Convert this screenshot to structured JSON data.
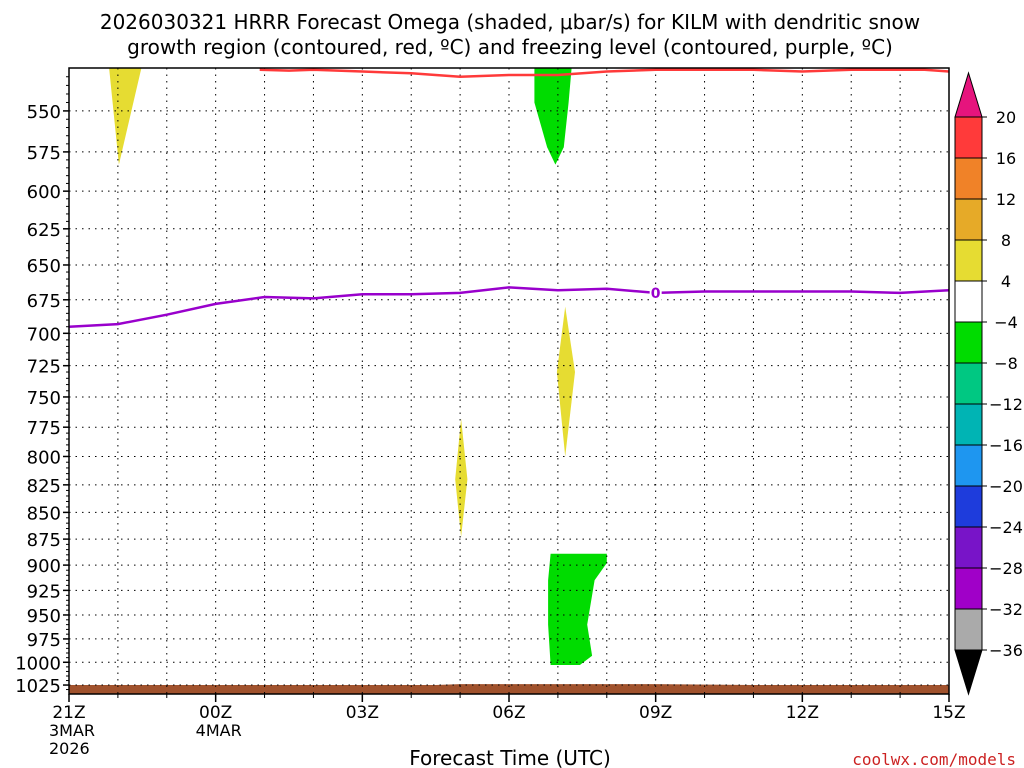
{
  "chart_data": {
    "type": "heatmap",
    "title_line1": "2026030321 HRRR Forecast Omega (shaded, μbar/s) for KILM with dendritic snow",
    "title_line2": "growth region (contoured, red, ºC) and freezing level (contoured, purple, ºC)",
    "xlabel": "Forecast Time (UTC)",
    "credit": "coolwx.com/models",
    "x_hours_range": [
      0,
      18
    ],
    "y_pressure_range": [
      525,
      1035
    ],
    "y_ticks": [
      550,
      575,
      600,
      625,
      650,
      675,
      700,
      725,
      750,
      775,
      800,
      825,
      850,
      875,
      900,
      925,
      950,
      975,
      1000,
      1025
    ],
    "x_ticks": [
      {
        "hour": 0,
        "label": "21Z",
        "sub1": "3MAR",
        "sub2": "2026"
      },
      {
        "hour": 3,
        "label": "00Z",
        "sub1": "4MAR",
        "sub2": ""
      },
      {
        "hour": 6,
        "label": "03Z",
        "sub1": "",
        "sub2": ""
      },
      {
        "hour": 9,
        "label": "06Z",
        "sub1": "",
        "sub2": ""
      },
      {
        "hour": 12,
        "label": "09Z",
        "sub1": "",
        "sub2": ""
      },
      {
        "hour": 15,
        "label": "12Z",
        "sub1": "",
        "sub2": ""
      },
      {
        "hour": 18,
        "label": "15Z",
        "sub1": "",
        "sub2": ""
      }
    ],
    "colorbar": {
      "levels": [
        20,
        16,
        12,
        8,
        4,
        -4,
        -8,
        -12,
        -16,
        -20,
        -24,
        -28,
        -32,
        -36
      ],
      "colors": [
        "#ff3a3a",
        "#f08228",
        "#e6aa28",
        "#e6dc32",
        "#ffffff",
        "#00dc00",
        "#00c882",
        "#00b4b4",
        "#1e96f0",
        "#1e3cdc",
        "#7814c8",
        "#a000c8",
        "#aaaaaa"
      ],
      "top_arrow_color": "#e6147d",
      "bottom_arrow_color": "#000000"
    },
    "omega_regions": [
      {
        "name": "yellow-upper-left",
        "color": "#e6dc32",
        "points": [
          [
            0.82,
            525
          ],
          [
            1.48,
            525
          ],
          [
            1.02,
            583
          ]
        ]
      },
      {
        "name": "green-upper-mid",
        "color": "#00dc00",
        "points": [
          [
            9.52,
            525
          ],
          [
            10.28,
            525
          ],
          [
            10.22,
            545
          ],
          [
            10.12,
            572
          ],
          [
            9.95,
            583
          ],
          [
            9.78,
            572
          ],
          [
            9.52,
            545
          ]
        ]
      },
      {
        "name": "yellow-mid-vertical",
        "color": "#e6dc32",
        "points": [
          [
            10.15,
            680
          ],
          [
            10.35,
            730
          ],
          [
            10.15,
            800
          ],
          [
            9.98,
            730
          ]
        ]
      },
      {
        "name": "yellow-lower-vertical",
        "color": "#e6dc32",
        "points": [
          [
            8.02,
            768
          ],
          [
            8.15,
            820
          ],
          [
            8.02,
            873
          ],
          [
            7.9,
            820
          ]
        ]
      },
      {
        "name": "green-lower-mid",
        "color": "#00dc00",
        "points": [
          [
            9.85,
            889
          ],
          [
            11.0,
            889
          ],
          [
            11.0,
            898
          ],
          [
            10.75,
            915
          ],
          [
            10.6,
            960
          ],
          [
            10.7,
            993
          ],
          [
            10.45,
            1003
          ],
          [
            9.85,
            1003
          ],
          [
            9.8,
            960
          ],
          [
            9.8,
            915
          ]
        ]
      },
      {
        "name": "surface-band",
        "color": "#a0522d",
        "points": [
          [
            0,
            1025
          ],
          [
            7.5,
            1025
          ],
          [
            8.0,
            1024
          ],
          [
            12.0,
            1024
          ],
          [
            14.0,
            1025
          ],
          [
            18,
            1025
          ],
          [
            18,
            1035
          ],
          [
            0,
            1035
          ]
        ]
      }
    ],
    "dendritic_contour": {
      "color": "#ff3a3a",
      "points": [
        [
          3.9,
          526
        ],
        [
          4.5,
          526.5
        ],
        [
          5.0,
          526
        ],
        [
          6.0,
          527
        ],
        [
          7.0,
          528
        ],
        [
          8.0,
          530
        ],
        [
          9.0,
          529
        ],
        [
          10.0,
          529
        ],
        [
          10.5,
          528
        ],
        [
          11.0,
          527
        ],
        [
          12.0,
          526
        ],
        [
          13.0,
          526
        ],
        [
          14.0,
          526
        ],
        [
          15.0,
          527
        ],
        [
          16.0,
          526
        ],
        [
          17.0,
          526
        ],
        [
          17.5,
          526
        ],
        [
          18,
          527
        ]
      ]
    },
    "freezing_contour": {
      "color": "#9900cc",
      "label": "0",
      "label_hour": 12,
      "points": [
        [
          0,
          695
        ],
        [
          1.0,
          693
        ],
        [
          2.0,
          686
        ],
        [
          3.0,
          678
        ],
        [
          4.0,
          673
        ],
        [
          5.0,
          674
        ],
        [
          6.0,
          671
        ],
        [
          7.0,
          671
        ],
        [
          8.0,
          670
        ],
        [
          9.0,
          666
        ],
        [
          10.0,
          668
        ],
        [
          11.0,
          667
        ],
        [
          12.0,
          670
        ],
        [
          13.0,
          669
        ],
        [
          14.0,
          669
        ],
        [
          15.0,
          669
        ],
        [
          16.0,
          669
        ],
        [
          17.0,
          670
        ],
        [
          18,
          668
        ]
      ]
    }
  }
}
